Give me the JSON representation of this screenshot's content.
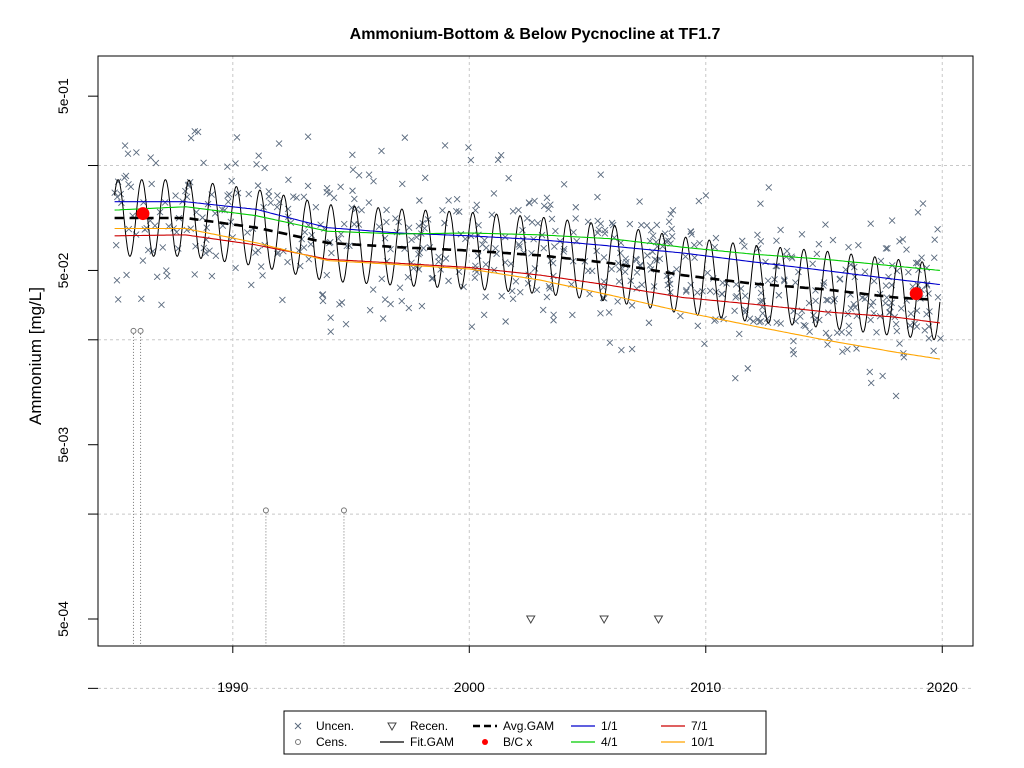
{
  "chart_data": {
    "type": "scatter",
    "title": "Ammonium-Bottom & Below Pycnocline at TF1.7",
    "xlabel": "",
    "ylabel": "Ammonium [mg/L]",
    "log_y": true,
    "xlim": [
      1984.3,
      2021.3
    ],
    "ylim": [
      0.00035,
      0.85
    ],
    "x_ticks": [
      1990,
      2000,
      2010,
      2020
    ],
    "x_tick_labels": [
      "1990",
      "2000",
      "2010",
      "2020"
    ],
    "y_ticks": [
      0.0005,
      0.005,
      0.05,
      0.5
    ],
    "y_tick_labels": [
      "5e-04",
      "5e-03",
      "5e-02",
      "5e-01"
    ],
    "y_grid": [
      0.0002,
      0.002,
      0.02,
      0.2
    ],
    "grid": true,
    "legend_position": "bottom",
    "legend": [
      {
        "label": "Uncen.",
        "symbol": "x",
        "color": "#5a6a7e"
      },
      {
        "label": "Cens.",
        "symbol": "circle",
        "color": "#777777"
      },
      {
        "label": "Recen.",
        "symbol": "triangle-down",
        "color": "#444444"
      },
      {
        "label": "Fit.GAM",
        "symbol": "line",
        "color": "#000000"
      },
      {
        "label": "Avg.GAM",
        "symbol": "dashed-line",
        "color": "#000000"
      },
      {
        "label": "B/C x",
        "symbol": "dot",
        "color": "#ff0000"
      },
      {
        "label": "1/1",
        "symbol": "line",
        "color": "#0000cc"
      },
      {
        "label": "4/1",
        "symbol": "line",
        "color": "#00cc00"
      },
      {
        "label": "7/1",
        "symbol": "line",
        "color": "#cc0000"
      },
      {
        "label": "10/1",
        "symbol": "line",
        "color": "#ffa500"
      }
    ],
    "series": [
      {
        "name": "1/1",
        "color": "#0000cc",
        "x": [
          1985.0,
          1988.0,
          1991.0,
          1994.0,
          1997.0,
          2000.0,
          2003.0,
          2006.0,
          2009.0,
          2012.0,
          2015.0,
          2018.0,
          2019.9
        ],
        "y": [
          0.124,
          0.124,
          0.112,
          0.088,
          0.082,
          0.079,
          0.075,
          0.069,
          0.063,
          0.056,
          0.05,
          0.0445,
          0.0415
        ]
      },
      {
        "name": "4/1",
        "color": "#00cc00",
        "x": [
          1985.0,
          1988.0,
          1991.0,
          1994.0,
          1997.0,
          2000.0,
          2003.0,
          2006.0,
          2009.0,
          2012.0,
          2015.0,
          2018.0,
          2019.9
        ],
        "y": [
          0.111,
          0.116,
          0.103,
          0.084,
          0.081,
          0.082,
          0.08,
          0.076,
          0.068,
          0.062,
          0.058,
          0.053,
          0.05
        ]
      },
      {
        "name": "7/1",
        "color": "#cc0000",
        "x": [
          1985.0,
          1988.0,
          1991.0,
          1994.0,
          1997.0,
          2000.0,
          2003.0,
          2006.0,
          2009.0,
          2012.0,
          2015.0,
          2018.0,
          2019.9
        ],
        "y": [
          0.079,
          0.08,
          0.07,
          0.058,
          0.055,
          0.052,
          0.047,
          0.041,
          0.035,
          0.032,
          0.029,
          0.027,
          0.025
        ]
      },
      {
        "name": "10/1",
        "color": "#ffa500",
        "x": [
          1985.0,
          1988.0,
          1991.0,
          1994.0,
          1997.0,
          2000.0,
          2003.0,
          2006.0,
          2009.0,
          2012.0,
          2015.0,
          2018.0,
          2019.9
        ],
        "y": [
          0.087,
          0.087,
          0.072,
          0.057,
          0.054,
          0.051,
          0.044,
          0.036,
          0.029,
          0.024,
          0.02,
          0.017,
          0.0155
        ]
      },
      {
        "name": "Avg.GAM",
        "color": "#000000",
        "dashed": true,
        "x": [
          1985.0,
          1988.0,
          1991.0,
          1994.0,
          1997.0,
          2000.0,
          2003.0,
          2006.0,
          2009.0,
          2012.0,
          2015.0,
          2018.0,
          2019.6
        ],
        "y": [
          0.1,
          0.1,
          0.088,
          0.072,
          0.068,
          0.065,
          0.061,
          0.055,
          0.047,
          0.042,
          0.039,
          0.035,
          0.034
        ]
      },
      {
        "name": "Fit.GAM",
        "color": "#000000",
        "seasonal": true,
        "x": [
          1985.0,
          1988.0,
          1991.0,
          1994.0,
          1997.0,
          2000.0,
          2003.0,
          2006.0,
          2009.0,
          2012.0,
          2015.0,
          2018.0,
          2019.9
        ],
        "y": [
          0.1,
          0.1,
          0.088,
          0.072,
          0.068,
          0.065,
          0.061,
          0.055,
          0.047,
          0.042,
          0.039,
          0.035,
          0.033
        ],
        "amplitude_log10": 0.22
      },
      {
        "name": "B/C x",
        "color": "#ff0000",
        "points": [
          [
            1986.2,
            0.106
          ],
          [
            2018.9,
            0.0368
          ]
        ]
      },
      {
        "name": "Recen.",
        "color": "#444444",
        "points": [
          [
            2002.6,
            0.0005
          ],
          [
            2005.7,
            0.0005
          ],
          [
            2008.0,
            0.0005
          ]
        ]
      },
      {
        "name": "Cens.",
        "color": "#777777",
        "points": [
          [
            1985.8,
            0.0225
          ],
          [
            1986.1,
            0.0225
          ],
          [
            1991.4,
            0.0021
          ],
          [
            1994.7,
            0.0021
          ]
        ]
      },
      {
        "name": "Uncen.",
        "color": "#5a6a7e",
        "n": 600,
        "x_range": [
          1985.0,
          2020.0
        ],
        "y_center_start": 0.11,
        "y_center_end": 0.04,
        "spread_log10": 0.33
      }
    ]
  }
}
